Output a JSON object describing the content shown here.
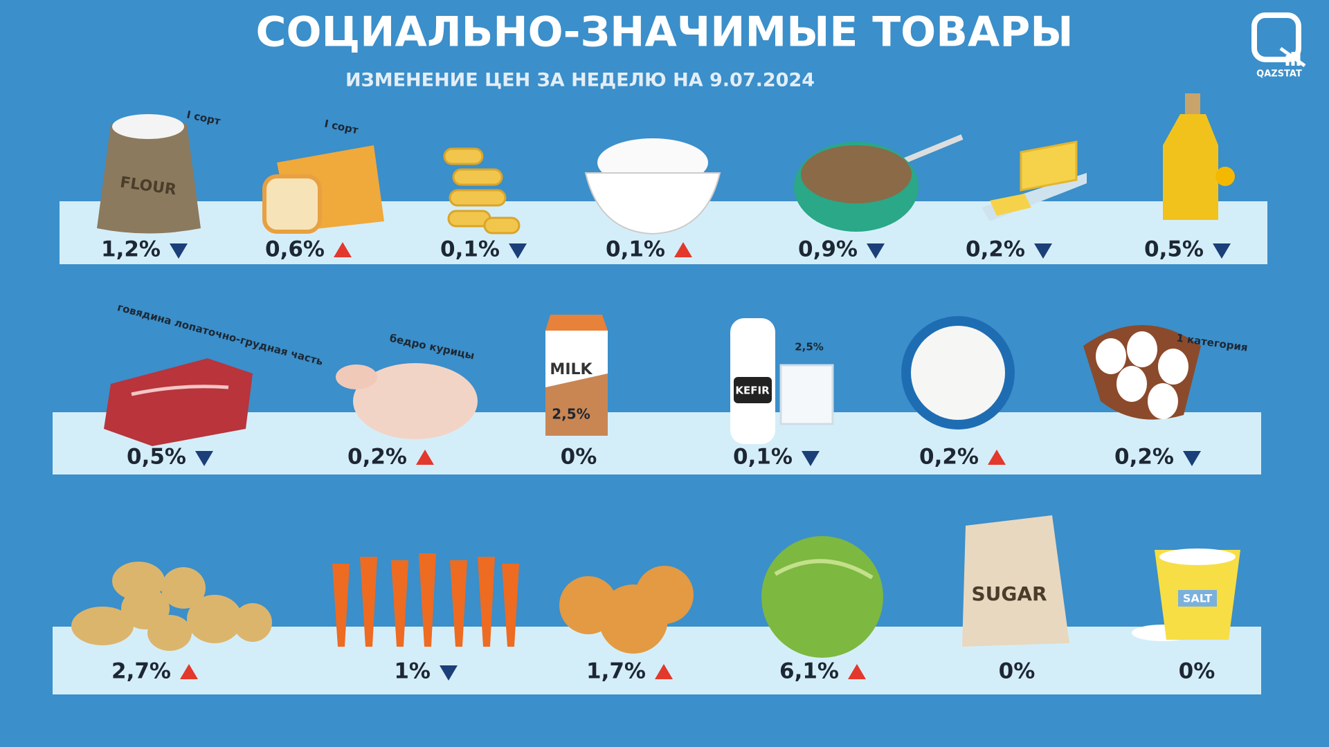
{
  "header": {
    "title": "СОЦИАЛЬНО-ЗНАЧИМЫЕ ТОВАРЫ",
    "subtitle": "ИЗМЕНЕНИЕ ЦЕН ЗА НЕДЕЛЮ НА 9.07.2024"
  },
  "logo": "QAZSTAT",
  "rows": [
    [
      {
        "note": "I сорт",
        "package_text": "FLOUR",
        "change": "1,2%",
        "direction": "down"
      },
      {
        "note": "I сорт",
        "change": "0,6%",
        "direction": "up"
      },
      {
        "change": "0,1%",
        "direction": "down"
      },
      {
        "change": "0,1%",
        "direction": "up"
      },
      {
        "change": "0,9%",
        "direction": "down"
      },
      {
        "change": "0,2%",
        "direction": "down"
      },
      {
        "change": "0,5%",
        "direction": "down"
      }
    ],
    [
      {
        "note": "говядина лопаточно-грудная часть",
        "change": "0,5%",
        "direction": "down"
      },
      {
        "note": "бедро курицы",
        "change": "0,2%",
        "direction": "up"
      },
      {
        "package_text": "MILK",
        "package_note": "2,5%",
        "change": "0%"
      },
      {
        "package_text": "KEFIR",
        "note": "2,5%",
        "change": "0,1%",
        "direction": "down"
      },
      {
        "change": "0,2%",
        "direction": "up"
      },
      {
        "note": "1 категория",
        "change": "0,2%",
        "direction": "down"
      }
    ],
    [
      {
        "change": "2,7%",
        "direction": "up"
      },
      {
        "change": "1%",
        "direction": "down"
      },
      {
        "change": "1,7%",
        "direction": "up"
      },
      {
        "change": "6,1%",
        "direction": "up"
      },
      {
        "package_text": "SUGAR",
        "change": "0%"
      },
      {
        "package_text": "SALT",
        "change": "0%"
      }
    ]
  ]
}
